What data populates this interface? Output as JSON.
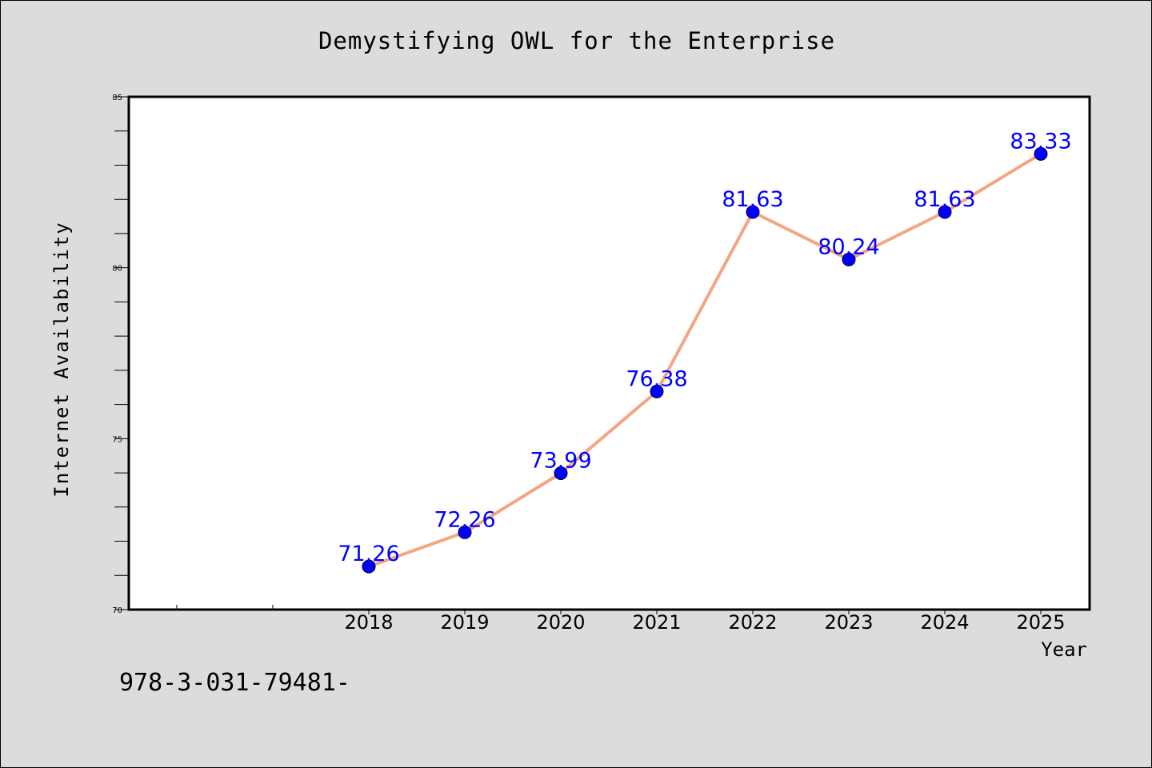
{
  "chart_data": {
    "type": "line",
    "title": "Demystifying OWL for the Enterprise",
    "xlabel": "Year",
    "ylabel": "Internet Availability",
    "categories": [
      "2018",
      "2019",
      "2020",
      "2021",
      "2022",
      "2023",
      "2024",
      "2025"
    ],
    "series": [
      {
        "values": [
          71.26,
          72.26,
          73.99,
          76.38,
          81.63,
          80.24,
          81.63,
          83.33
        ],
        "line_color": "#f4a582",
        "marker_color": "#0000ff",
        "label_color": "#0000ff"
      }
    ],
    "data_labels": [
      "71.26",
      "72.26",
      "73.99",
      "76.38",
      "81.63",
      "80.24",
      "81.63",
      "83.33"
    ],
    "ylim": [
      70,
      85
    ],
    "yticks": [
      "70",
      "75",
      "80",
      "85"
    ],
    "grid": false,
    "plot_background": "#ffffff",
    "figure_background": "#dcdcdc"
  },
  "footer": {
    "code": "978-3-031-79481-"
  }
}
